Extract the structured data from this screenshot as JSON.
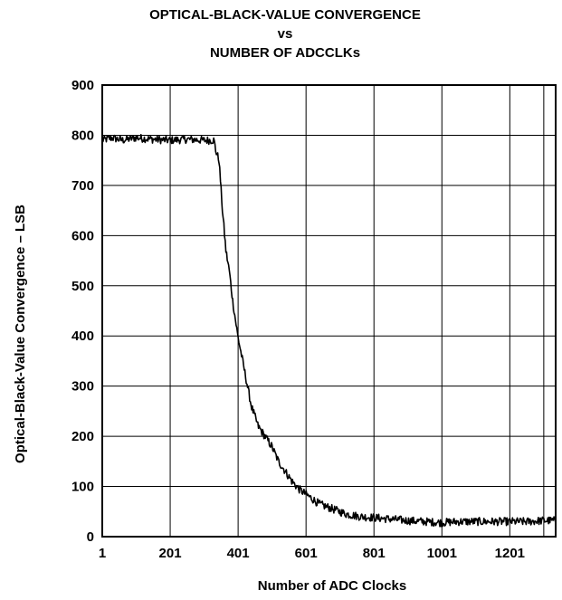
{
  "chart_data": {
    "type": "line",
    "title_lines": [
      "OPTICAL-BLACK-VALUE CONVERGENCE",
      "vs",
      "NUMBER OF ADCCLKs"
    ],
    "xlabel": "Number of ADC Clocks",
    "ylabel": "Optical-Black-Value Convergence – LSB",
    "xlim": [
      1,
      1336
    ],
    "ylim": [
      0,
      900
    ],
    "grid": true,
    "x_tick_values": [
      1,
      201,
      401,
      601,
      801,
      1001,
      1201
    ],
    "x_tick_labels": [
      "1",
      "201",
      "401",
      "601",
      "801",
      "1001",
      "1201"
    ],
    "y_tick_values": [
      0,
      100,
      200,
      300,
      400,
      500,
      600,
      700,
      800,
      900
    ],
    "y_tick_labels": [
      "0",
      "100",
      "200",
      "300",
      "400",
      "500",
      "600",
      "700",
      "800",
      "900"
    ],
    "series": [
      {
        "line_color": "#000000",
        "points": [
          [
            1,
            790
          ],
          [
            30,
            795
          ],
          [
            60,
            790
          ],
          [
            100,
            795
          ],
          [
            150,
            792
          ],
          [
            200,
            790
          ],
          [
            250,
            792
          ],
          [
            300,
            790
          ],
          [
            330,
            790
          ],
          [
            335,
            770
          ],
          [
            345,
            750
          ],
          [
            355,
            650
          ],
          [
            365,
            570
          ],
          [
            375,
            530
          ],
          [
            385,
            470
          ],
          [
            400,
            400
          ],
          [
            420,
            330
          ],
          [
            440,
            260
          ],
          [
            460,
            220
          ],
          [
            480,
            200
          ],
          [
            500,
            180
          ],
          [
            520,
            150
          ],
          [
            540,
            130
          ],
          [
            560,
            110
          ],
          [
            580,
            95
          ],
          [
            600,
            85
          ],
          [
            640,
            65
          ],
          [
            680,
            55
          ],
          [
            720,
            45
          ],
          [
            760,
            40
          ],
          [
            800,
            38
          ],
          [
            850,
            35
          ],
          [
            900,
            32
          ],
          [
            950,
            30
          ],
          [
            1000,
            28
          ],
          [
            1050,
            30
          ],
          [
            1100,
            30
          ],
          [
            1150,
            30
          ],
          [
            1200,
            30
          ],
          [
            1250,
            30
          ],
          [
            1300,
            32
          ],
          [
            1336,
            32
          ]
        ],
        "noise_amplitude": 8
      }
    ]
  }
}
